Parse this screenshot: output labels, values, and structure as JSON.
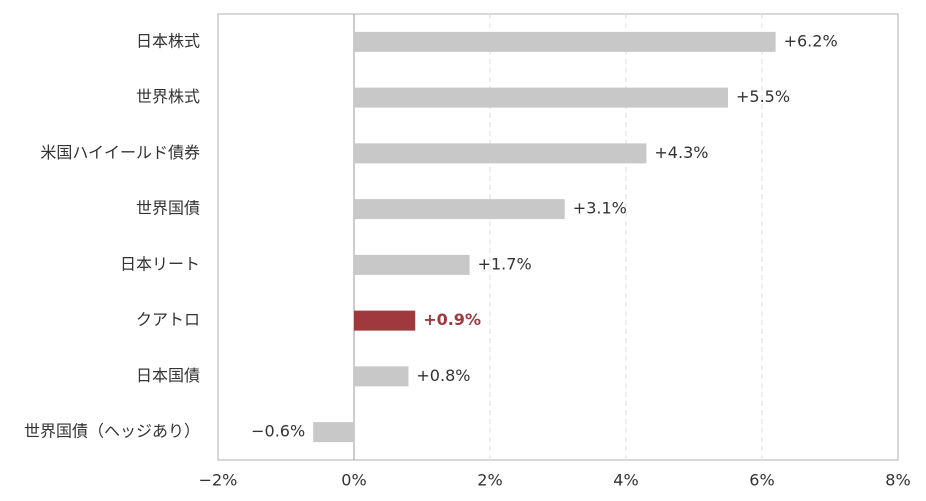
{
  "chart_data": {
    "type": "hbar",
    "categories": [
      "日本株式",
      "世界株式",
      "米国ハイイールド債券",
      "世界国債",
      "日本リート",
      "クアトロ",
      "日本国債",
      "世界国債（ヘッジあり）"
    ],
    "values": [
      6.2,
      5.5,
      4.3,
      3.1,
      1.7,
      0.9,
      0.8,
      -0.6
    ],
    "value_labels": [
      "+6.2%",
      "+5.5%",
      "+4.3%",
      "+3.1%",
      "+1.7%",
      "+0.9%",
      "+0.8%",
      "−0.6%"
    ],
    "color": "#c8c8c8",
    "colors": [
      "#c8c8c8",
      "#c8c8c8",
      "#c8c8c8",
      "#c8c8c8",
      "#c8c8c8",
      "#a0393e",
      "#c8c8c8",
      "#c8c8c8"
    ],
    "xlim": [
      -2,
      8
    ],
    "xticks": [
      {
        "value": -2,
        "label": "−2%"
      },
      {
        "value": 0,
        "label": "0%"
      },
      {
        "value": 2,
        "label": "2%"
      },
      {
        "value": 4,
        "label": "4%"
      },
      {
        "value": 6,
        "label": "6%"
      },
      {
        "value": 8,
        "label": "8%"
      }
    ],
    "grid": true
  }
}
